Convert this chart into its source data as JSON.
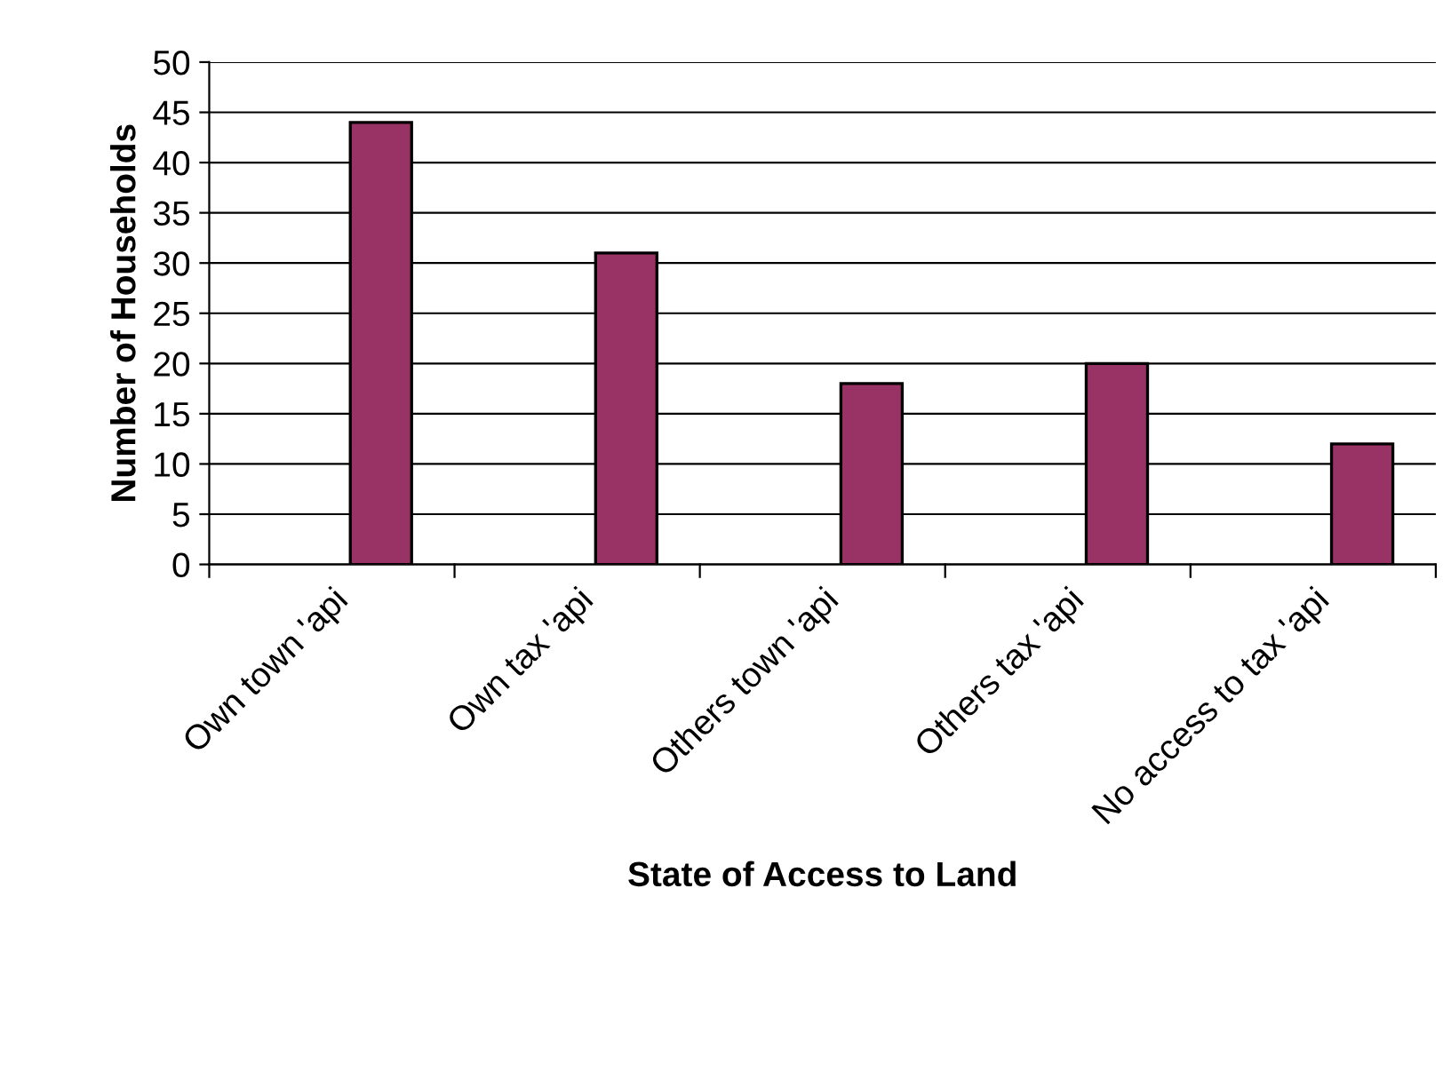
{
  "chart_data": {
    "type": "bar",
    "xlabel": "State of Access to Land",
    "ylabel": "Number of Households",
    "categories": [
      "Own town 'api",
      "Own tax 'api",
      "Others town 'api",
      "Others tax 'api",
      "No access to tax 'api"
    ],
    "values": [
      44,
      31,
      18,
      20,
      12
    ],
    "color": "#993366",
    "ylim": [
      0,
      50
    ],
    "yticks": [
      0,
      5,
      10,
      15,
      20,
      25,
      30,
      35,
      40,
      45,
      50
    ],
    "grid": "y"
  }
}
